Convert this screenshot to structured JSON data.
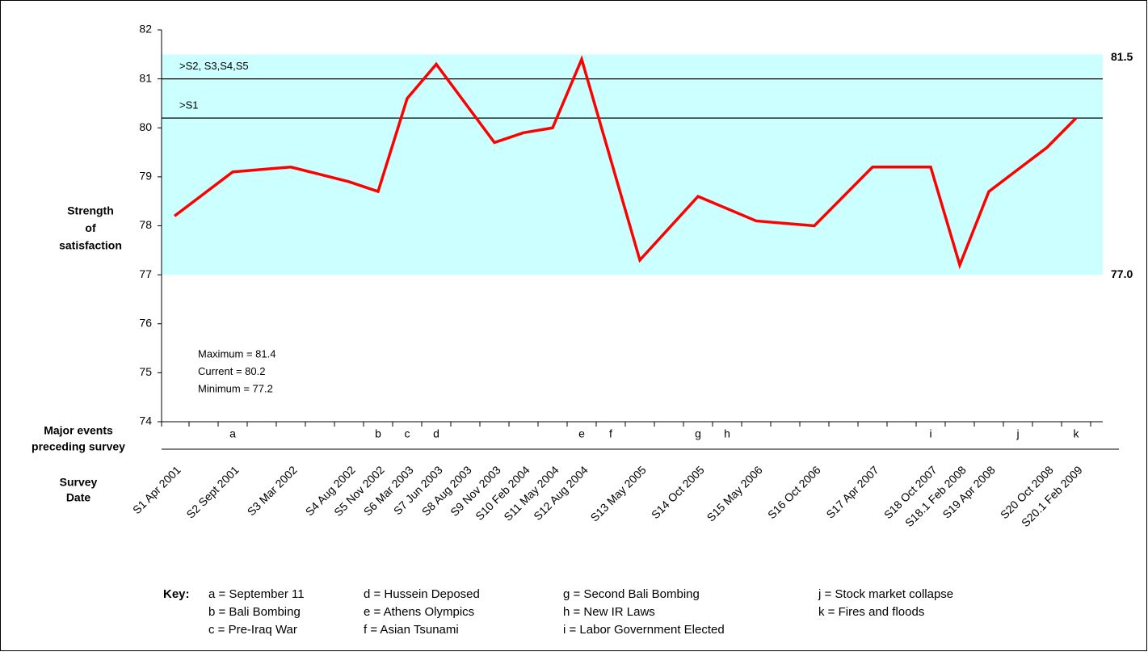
{
  "chart_data": {
    "type": "line",
    "y_label": [
      "Strength",
      "of",
      "satisfaction"
    ],
    "events_label": [
      "Major events",
      "preceding survey"
    ],
    "x_label": [
      "Survey",
      "Date"
    ],
    "categories": [
      "S1 Apr 2001",
      null,
      "S2 Sept 2001",
      null,
      "S3 Mar 2002",
      null,
      "S4 Aug 2002",
      "S5 Nov 2002",
      "S6 Mar 2003",
      "S7 Jun 2003",
      "S8 Aug 2003",
      "S9 Nov 2003",
      "S10 Feb 2004",
      "S11 May 2004",
      "S12 Aug 2004",
      null,
      "S13 May 2005",
      null,
      "S14 Oct 2005",
      null,
      "S15 May 2006",
      null,
      "S16 Oct 2006",
      null,
      "S17 Apr 2007",
      null,
      "S18 Oct 2007",
      "S18.1 Feb 2008",
      "S19 Apr 2008",
      null,
      "S20 Oct 2008",
      "S20.1 Feb 2009"
    ],
    "events": [
      null,
      null,
      "a",
      null,
      null,
      null,
      null,
      "b",
      "c",
      "d",
      null,
      null,
      null,
      null,
      "e",
      "f",
      null,
      null,
      "g",
      "h",
      null,
      null,
      null,
      null,
      null,
      null,
      "i",
      null,
      null,
      "j",
      null,
      "k"
    ],
    "series": [
      {
        "name": "Strength of satisfaction",
        "color": "#ff0000",
        "values": [
          78.2,
          78.65,
          79.1,
          79.15,
          79.2,
          79.05,
          78.9,
          78.7,
          80.6,
          81.3,
          80.5,
          79.7,
          79.9,
          80.0,
          81.4,
          79.35,
          77.3,
          77.95,
          78.6,
          78.35,
          78.1,
          78.05,
          78.0,
          78.6,
          79.2,
          79.2,
          79.2,
          77.2,
          78.7,
          79.15,
          79.6,
          80.2
        ]
      }
    ],
    "ylim": [
      74,
      82
    ],
    "yticks": [
      74,
      75,
      76,
      77,
      78,
      79,
      80,
      81,
      82
    ],
    "band": {
      "lower": {
        "value": 77,
        "label": "77.0"
      },
      "upper": 81.5,
      "color": "#ccffff"
    },
    "reference_lines": [
      {
        "value": 81,
        "label": ">S2, S3,S4,S5"
      },
      {
        "value": 80.2,
        "label": ">S1"
      }
    ],
    "stats": [
      "Maximum = 81.4",
      "Current = 80.2",
      "Minimum = 77.2"
    ],
    "key_title": "Key:",
    "key": [
      [
        "a = September 11",
        "b = Bali Bombing",
        "c = Pre-Iraq War"
      ],
      [
        "d = Hussein Deposed",
        "e = Athens Olympics",
        "f = Asian Tsunami"
      ],
      [
        "g = Second Bali Bombing",
        "h = New IR Laws",
        "i = Labor Government Elected"
      ],
      [
        "j = Stock market collapse",
        "k = Fires and floods"
      ]
    ]
  }
}
